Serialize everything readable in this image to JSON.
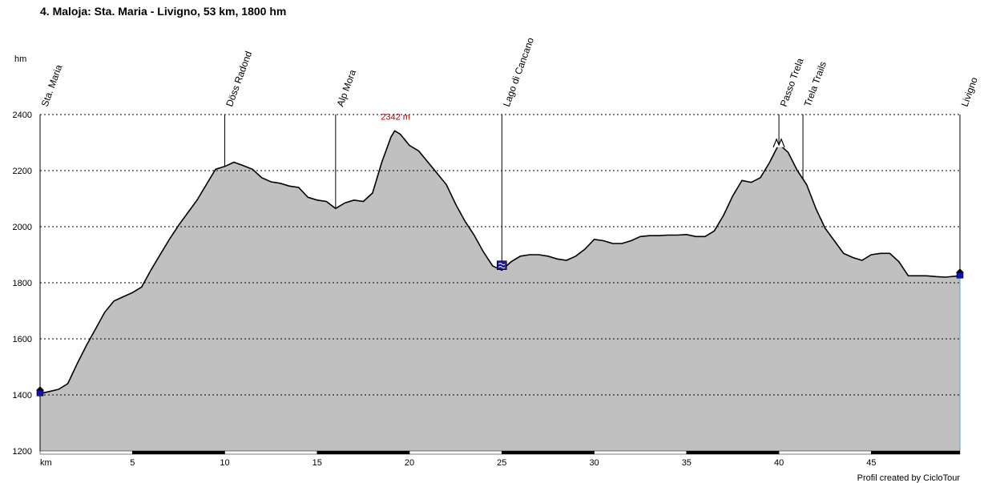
{
  "chart_data": {
    "type": "area",
    "title": "4. Maloja: Sta. Maria - Livigno, 53 km, 1800 hm",
    "ylabel": "hm",
    "xlabel": "km",
    "xlim": [
      0,
      49.8
    ],
    "ylim": [
      1200,
      2400
    ],
    "x_ticks": [
      5,
      10,
      15,
      20,
      25,
      30,
      35,
      40,
      45
    ],
    "y_ticks": [
      1200,
      1400,
      1600,
      1800,
      2000,
      2200,
      2400
    ],
    "grid": true,
    "fill_color": "#c0c0c0",
    "line_color": "#000000",
    "peak_label": "2342 m",
    "peak_point": {
      "x": 19.2,
      "y": 2342
    },
    "credit": "Profil created by CicloTour",
    "waypoints": [
      {
        "name": "Sta. Maria",
        "x": 0
      },
      {
        "name": "Döss Radond",
        "x": 10
      },
      {
        "name": "Alp Mora",
        "x": 16
      },
      {
        "name": "Lago di Cancano",
        "x": 25
      },
      {
        "name": "Passo Trela",
        "x": 40
      },
      {
        "name": "Trela Trails",
        "x": 41.3
      },
      {
        "name": "Livigno",
        "x": 49.8
      }
    ],
    "series": [
      {
        "x": [
          0,
          0.5,
          1.0,
          1.5,
          2.0,
          2.5,
          3.0,
          3.5,
          4.0,
          4.5,
          5.0,
          5.5,
          6.0,
          6.5,
          7.0,
          7.5,
          8.0,
          8.5,
          9.0,
          9.5,
          10.0,
          10.5,
          11.0,
          11.5,
          12.0,
          12.5,
          13.0,
          13.5,
          14.0,
          14.5,
          15.0,
          15.5,
          16.0,
          16.5,
          17.0,
          17.5,
          18.0,
          18.5,
          19.0,
          19.2,
          19.5,
          20.0,
          20.5,
          21.0,
          21.5,
          22.0,
          22.5,
          23.0,
          23.5,
          24.0,
          24.5,
          25.0,
          25.5,
          26.0,
          26.5,
          27.0,
          27.5,
          28.0,
          28.5,
          29.0,
          29.5,
          30.0,
          30.5,
          31.0,
          31.5,
          32.0,
          32.5,
          33.0,
          33.5,
          34.0,
          34.5,
          35.0,
          35.5,
          36.0,
          36.5,
          37.0,
          37.5,
          38.0,
          38.5,
          39.0,
          39.5,
          40.0,
          40.5,
          41.0,
          41.5,
          42.0,
          42.5,
          43.0,
          43.5,
          44.0,
          44.5,
          45.0,
          45.5,
          46.0,
          46.5,
          47.0,
          47.5,
          48.0,
          48.5,
          49.0,
          49.8
        ],
        "values": [
          1405,
          1412,
          1420,
          1440,
          1510,
          1575,
          1635,
          1695,
          1735,
          1750,
          1765,
          1785,
          1845,
          1900,
          1955,
          2005,
          2050,
          2095,
          2150,
          2205,
          2215,
          2230,
          2218,
          2205,
          2175,
          2160,
          2155,
          2145,
          2140,
          2105,
          2095,
          2090,
          2065,
          2085,
          2095,
          2090,
          2120,
          2230,
          2320,
          2342,
          2330,
          2290,
          2270,
          2230,
          2190,
          2150,
          2080,
          2020,
          1970,
          1910,
          1860,
          1845,
          1875,
          1895,
          1900,
          1900,
          1895,
          1885,
          1880,
          1895,
          1920,
          1955,
          1950,
          1940,
          1940,
          1950,
          1965,
          1968,
          1968,
          1970,
          1970,
          1972,
          1965,
          1965,
          1985,
          2040,
          2110,
          2165,
          2158,
          2175,
          2230,
          2295,
          2265,
          2200,
          2150,
          2065,
          1995,
          1950,
          1905,
          1890,
          1880,
          1900,
          1905,
          1905,
          1875,
          1825,
          1825,
          1825,
          1822,
          1820,
          1825
        ]
      }
    ]
  }
}
